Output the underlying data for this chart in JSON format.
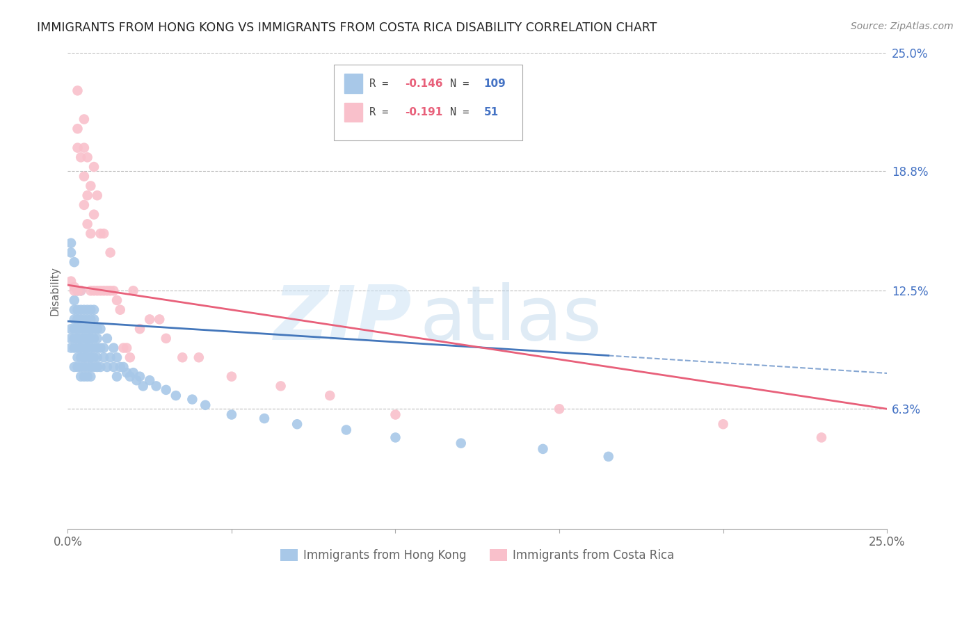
{
  "title": "IMMIGRANTS FROM HONG KONG VS IMMIGRANTS FROM COSTA RICA DISABILITY CORRELATION CHART",
  "source": "Source: ZipAtlas.com",
  "ylabel": "Disability",
  "xlim": [
    0.0,
    0.25
  ],
  "ylim": [
    0.0,
    0.25
  ],
  "ytick_labels_right": [
    "6.3%",
    "12.5%",
    "18.8%",
    "25.0%"
  ],
  "ytick_vals_right": [
    0.063,
    0.125,
    0.188,
    0.25
  ],
  "hk_color": "#a8c8e8",
  "cr_color": "#f9c0cb",
  "hk_line_color": "#4477bb",
  "cr_line_color": "#e8607a",
  "hk_line_y0": 0.109,
  "hk_line_y_end": 0.091,
  "hk_line_x_end": 0.165,
  "cr_line_y0": 0.128,
  "cr_line_y1": 0.063,
  "hk_x": [
    0.001,
    0.001,
    0.001,
    0.002,
    0.002,
    0.002,
    0.002,
    0.002,
    0.002,
    0.002,
    0.003,
    0.003,
    0.003,
    0.003,
    0.003,
    0.003,
    0.003,
    0.003,
    0.003,
    0.003,
    0.004,
    0.004,
    0.004,
    0.004,
    0.004,
    0.004,
    0.004,
    0.004,
    0.004,
    0.004,
    0.005,
    0.005,
    0.005,
    0.005,
    0.005,
    0.005,
    0.005,
    0.005,
    0.005,
    0.005,
    0.006,
    0.006,
    0.006,
    0.006,
    0.006,
    0.006,
    0.006,
    0.006,
    0.006,
    0.006,
    0.007,
    0.007,
    0.007,
    0.007,
    0.007,
    0.007,
    0.007,
    0.007,
    0.007,
    0.007,
    0.008,
    0.008,
    0.008,
    0.008,
    0.008,
    0.008,
    0.008,
    0.009,
    0.009,
    0.009,
    0.009,
    0.009,
    0.01,
    0.01,
    0.01,
    0.011,
    0.011,
    0.012,
    0.012,
    0.013,
    0.014,
    0.014,
    0.015,
    0.015,
    0.016,
    0.017,
    0.018,
    0.019,
    0.02,
    0.021,
    0.022,
    0.023,
    0.025,
    0.027,
    0.03,
    0.033,
    0.038,
    0.042,
    0.05,
    0.06,
    0.07,
    0.085,
    0.1,
    0.12,
    0.145,
    0.165,
    0.001,
    0.001,
    0.002
  ],
  "hk_y": [
    0.1,
    0.105,
    0.095,
    0.1,
    0.11,
    0.095,
    0.115,
    0.085,
    0.105,
    0.12,
    0.1,
    0.11,
    0.095,
    0.115,
    0.085,
    0.105,
    0.125,
    0.09,
    0.1,
    0.11,
    0.095,
    0.105,
    0.115,
    0.085,
    0.1,
    0.09,
    0.11,
    0.125,
    0.08,
    0.095,
    0.1,
    0.09,
    0.11,
    0.085,
    0.095,
    0.115,
    0.08,
    0.1,
    0.105,
    0.09,
    0.095,
    0.105,
    0.115,
    0.085,
    0.1,
    0.09,
    0.11,
    0.08,
    0.095,
    0.1,
    0.09,
    0.105,
    0.115,
    0.085,
    0.1,
    0.08,
    0.11,
    0.095,
    0.1,
    0.09,
    0.095,
    0.105,
    0.115,
    0.085,
    0.1,
    0.09,
    0.11,
    0.095,
    0.105,
    0.085,
    0.1,
    0.09,
    0.095,
    0.105,
    0.085,
    0.095,
    0.09,
    0.1,
    0.085,
    0.09,
    0.095,
    0.085,
    0.09,
    0.08,
    0.085,
    0.085,
    0.082,
    0.08,
    0.082,
    0.078,
    0.08,
    0.075,
    0.078,
    0.075,
    0.073,
    0.07,
    0.068,
    0.065,
    0.06,
    0.058,
    0.055,
    0.052,
    0.048,
    0.045,
    0.042,
    0.038,
    0.145,
    0.15,
    0.14
  ],
  "cr_x": [
    0.001,
    0.002,
    0.003,
    0.003,
    0.003,
    0.004,
    0.004,
    0.005,
    0.005,
    0.005,
    0.006,
    0.006,
    0.006,
    0.007,
    0.007,
    0.007,
    0.008,
    0.008,
    0.008,
    0.009,
    0.009,
    0.01,
    0.01,
    0.011,
    0.011,
    0.012,
    0.013,
    0.013,
    0.014,
    0.015,
    0.016,
    0.017,
    0.018,
    0.019,
    0.02,
    0.022,
    0.025,
    0.028,
    0.03,
    0.035,
    0.04,
    0.05,
    0.065,
    0.08,
    0.1,
    0.15,
    0.2,
    0.23,
    0.002,
    0.003,
    0.005
  ],
  "cr_y": [
    0.13,
    0.127,
    0.21,
    0.23,
    0.125,
    0.195,
    0.125,
    0.185,
    0.215,
    0.2,
    0.16,
    0.175,
    0.195,
    0.125,
    0.155,
    0.18,
    0.125,
    0.165,
    0.19,
    0.125,
    0.175,
    0.125,
    0.155,
    0.125,
    0.155,
    0.125,
    0.125,
    0.145,
    0.125,
    0.12,
    0.115,
    0.095,
    0.095,
    0.09,
    0.125,
    0.105,
    0.11,
    0.11,
    0.1,
    0.09,
    0.09,
    0.08,
    0.075,
    0.07,
    0.06,
    0.063,
    0.055,
    0.048,
    0.125,
    0.2,
    0.17
  ]
}
